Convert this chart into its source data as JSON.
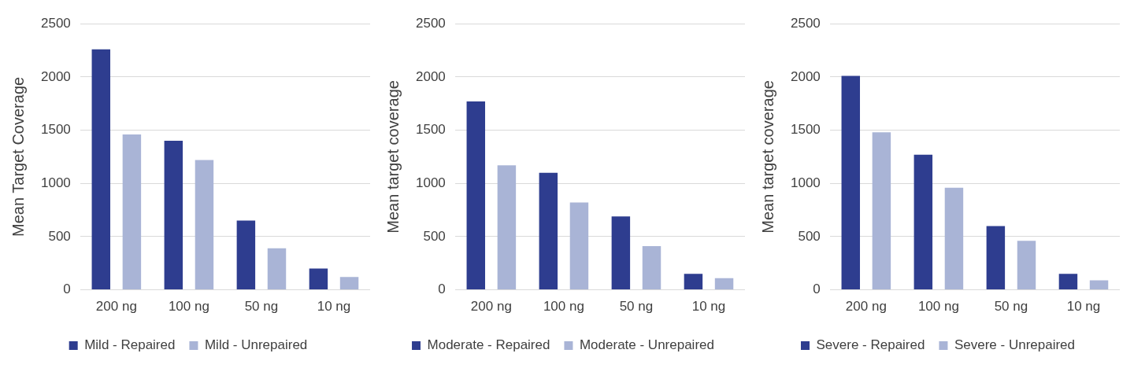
{
  "chart_data": [
    {
      "type": "bar",
      "categories": [
        "200 ng",
        "100 ng",
        "50 ng",
        "10 ng"
      ],
      "ylabel": "Mean Target Coverage",
      "ylim": [
        0,
        2500
      ],
      "yticks": [
        0,
        500,
        1000,
        1500,
        2000,
        2500
      ],
      "grid": "y",
      "legend": "bottom",
      "series": [
        {
          "name": "Mild - Repaired",
          "color": "#2e3d8f",
          "values": [
            2260,
            1400,
            650,
            200
          ]
        },
        {
          "name": "Mild - Unrepaired",
          "color": "#a9b4d6",
          "values": [
            1460,
            1220,
            390,
            120
          ]
        }
      ]
    },
    {
      "type": "bar",
      "categories": [
        "200 ng",
        "100 ng",
        "50 ng",
        "10 ng"
      ],
      "ylabel": "Mean target coverage",
      "ylim": [
        0,
        2500
      ],
      "yticks": [
        0,
        500,
        1000,
        1500,
        2000,
        2500
      ],
      "grid": "y",
      "legend": "bottom",
      "series": [
        {
          "name": "Moderate - Repaired",
          "color": "#2e3d8f",
          "values": [
            1770,
            1100,
            690,
            150
          ]
        },
        {
          "name": "Moderate - Unrepaired",
          "color": "#a9b4d6",
          "values": [
            1170,
            820,
            410,
            110
          ]
        }
      ]
    },
    {
      "type": "bar",
      "categories": [
        "200 ng",
        "100 ng",
        "50 ng",
        "10 ng"
      ],
      "ylabel": "Mean target coverage",
      "ylim": [
        0,
        2500
      ],
      "yticks": [
        0,
        500,
        1000,
        1500,
        2000,
        2500
      ],
      "grid": "y",
      "legend": "bottom",
      "series": [
        {
          "name": "Severe - Repaired",
          "color": "#2e3d8f",
          "values": [
            2010,
            1270,
            600,
            150
          ]
        },
        {
          "name": "Severe - Unrepaired",
          "color": "#a9b4d6",
          "values": [
            1480,
            960,
            460,
            90
          ]
        }
      ]
    }
  ]
}
